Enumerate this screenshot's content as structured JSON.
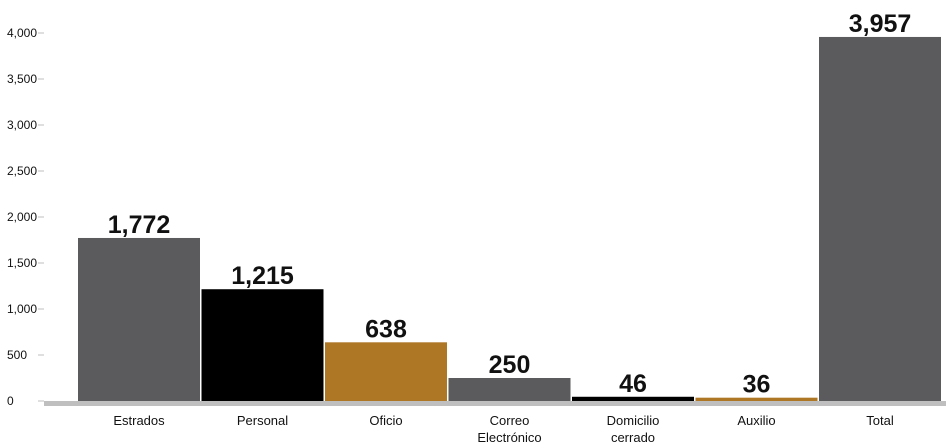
{
  "chart_data": {
    "type": "bar",
    "categories": [
      [
        "Estrados"
      ],
      [
        "Personal"
      ],
      [
        "Oficio"
      ],
      [
        "Correo",
        "Electrónico"
      ],
      [
        "Domicilio",
        "cerrado"
      ],
      [
        "Auxilio"
      ],
      [
        "Total"
      ]
    ],
    "values": [
      1772,
      1215,
      638,
      250,
      46,
      36,
      3957
    ],
    "data_labels": [
      "1,772",
      "1,215",
      "638",
      "250",
      "46",
      "36",
      "3,957"
    ],
    "bar_colors": [
      "#5b5b5d",
      "#000000",
      "#ae7726",
      "#5b5b5d",
      "#000000",
      "#ae7726",
      "#5b5b5d"
    ],
    "ylim": [
      0,
      4000
    ],
    "yticks": [
      0,
      500,
      1000,
      1500,
      2000,
      2500,
      3000,
      3500,
      4000
    ],
    "ytick_labels": [
      "0",
      "500",
      "1,000",
      "1,500",
      "2,000",
      "2,500",
      "3,000",
      "3,500",
      "4,000"
    ],
    "grid": false,
    "legend": "none",
    "axis_color": "#bfbfbf"
  }
}
